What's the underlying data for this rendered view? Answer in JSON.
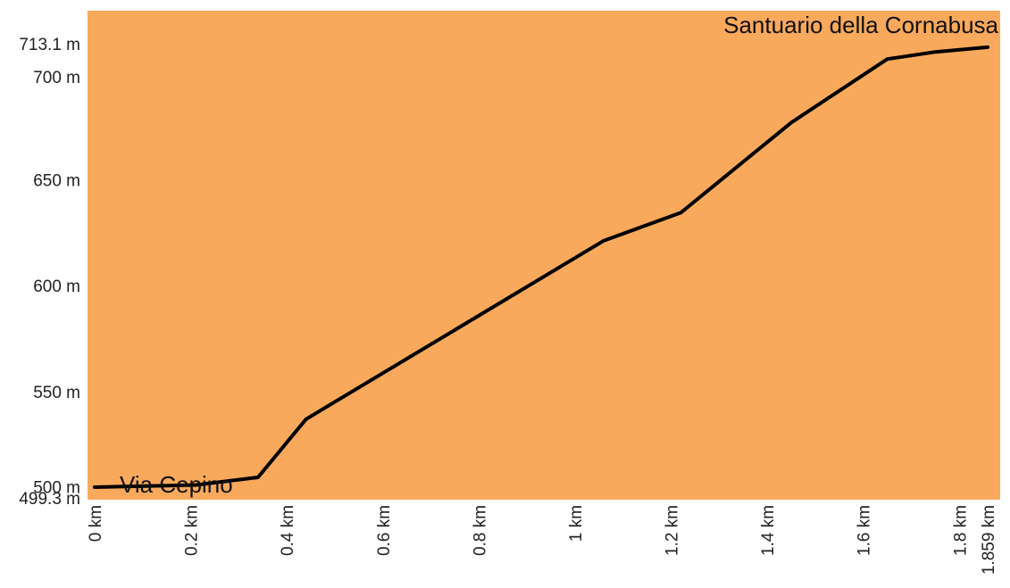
{
  "chart_data": {
    "type": "area",
    "title": "",
    "xlabel": "",
    "ylabel": "",
    "xlim": [
      0,
      1.859
    ],
    "ylim": [
      499.3,
      713.1
    ],
    "grid": false,
    "colors": {
      "fill": "#f9a95c",
      "line": "#000000"
    },
    "x_ticks": [
      {
        "value": 0,
        "label": "0 km"
      },
      {
        "value": 0.2,
        "label": "0.2 km"
      },
      {
        "value": 0.4,
        "label": "0.4 km"
      },
      {
        "value": 0.6,
        "label": "0.6 km"
      },
      {
        "value": 0.8,
        "label": "0.8 km"
      },
      {
        "value": 1,
        "label": "1 km"
      },
      {
        "value": 1.2,
        "label": "1.2 km"
      },
      {
        "value": 1.4,
        "label": "1.4 km"
      },
      {
        "value": 1.6,
        "label": "1.6 km"
      },
      {
        "value": 1.8,
        "label": "1.8 km"
      },
      {
        "value": 1.859,
        "label": "1.859 km"
      }
    ],
    "y_ticks": [
      {
        "value": 499.3,
        "label": "499.3 m"
      },
      {
        "value": 500,
        "label": "500 m"
      },
      {
        "value": 550,
        "label": "550 m"
      },
      {
        "value": 600,
        "label": "600 m"
      },
      {
        "value": 650,
        "label": "650 m"
      },
      {
        "value": 700,
        "label": "700 m"
      },
      {
        "value": 713.1,
        "label": "713.1 m"
      }
    ],
    "series": [
      {
        "x": [
          0,
          0.21,
          0.34,
          0.44,
          1.06,
          1.22,
          1.45,
          1.65,
          1.75,
          1.859
        ],
        "y": [
          504.8,
          505.8,
          509.4,
          536.9,
          621.3,
          634.5,
          677.1,
          707.1,
          710.5,
          712.7
        ]
      }
    ],
    "annotations": {
      "start": "Via Cepino",
      "end": "Santuario della Cornabusa"
    }
  }
}
